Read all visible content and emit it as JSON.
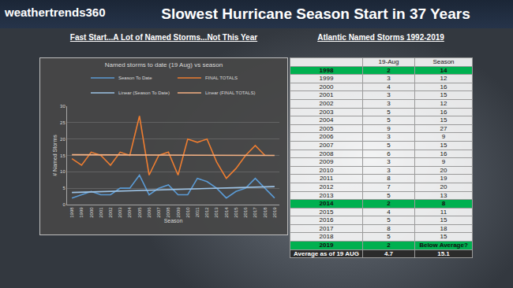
{
  "header": {
    "logo": "weathertrends360",
    "title": "Slowest Hurricane Season Start in 37 Years",
    "left_subtitle": "Fast Start...A Lot of Named Storms...Not This Year",
    "right_subtitle": "Atlantic Named Storms 1992-2019"
  },
  "chart_data": {
    "type": "line",
    "title": "Named storms to date (19 Aug) vs season",
    "x_label": "Season",
    "y_label": "# Named Storms",
    "x": [
      1998,
      1999,
      2000,
      2001,
      2002,
      2003,
      2004,
      2005,
      2006,
      2007,
      2008,
      2009,
      2010,
      2011,
      2012,
      2013,
      2014,
      2015,
      2016,
      2017,
      2018,
      2019
    ],
    "series": [
      {
        "name": "Season To Date",
        "color": "#5B9BD5",
        "line_style": "solid",
        "values": [
          2,
          3,
          4,
          3,
          3,
          5,
          5,
          9,
          3,
          5,
          6,
          3,
          3,
          8,
          7,
          5,
          2,
          4,
          5,
          8,
          5,
          2
        ]
      },
      {
        "name": "FINAL TOTALS",
        "color": "#ED7D31",
        "line_style": "solid",
        "values": [
          14,
          12,
          16,
          15,
          12,
          16,
          15,
          27,
          9,
          15,
          16,
          9,
          20,
          19,
          20,
          13,
          8,
          11,
          15,
          18,
          15,
          null
        ]
      },
      {
        "name": "Linear (Season To Date)",
        "color": "#9DC3E6",
        "line_style": "solid",
        "x": [
          1998,
          2019
        ],
        "values": [
          3.7,
          5.5
        ]
      },
      {
        "name": "Linear (FINAL TOTALS)",
        "color": "#F4B183",
        "line_style": "solid",
        "x": [
          1998,
          2019
        ],
        "values": [
          15.2,
          15.0
        ]
      }
    ],
    "xlim": [
      1997.5,
      2019.5
    ],
    "xticks": [
      1998,
      1999,
      2000,
      2001,
      2002,
      2003,
      2004,
      2005,
      2006,
      2007,
      2008,
      2009,
      2010,
      2011,
      2012,
      2013,
      2014,
      2015,
      2016,
      2017,
      2018,
      2019
    ],
    "ylim": [
      0,
      30
    ],
    "yticks": [
      0,
      5,
      10,
      15,
      20,
      25,
      30
    ],
    "grid": true,
    "legend": "top"
  },
  "table": {
    "columns": [
      "19-Aug",
      "Season"
    ],
    "rows": [
      {
        "cells": [
          "1998",
          2,
          14
        ],
        "color": "#00B050"
      },
      {
        "cells": [
          "1999",
          3,
          12
        ]
      },
      {
        "cells": [
          "2000",
          4,
          16
        ]
      },
      {
        "cells": [
          "2001",
          3,
          15
        ]
      },
      {
        "cells": [
          "2002",
          3,
          12
        ]
      },
      {
        "cells": [
          "2003",
          5,
          16
        ]
      },
      {
        "cells": [
          "2004",
          5,
          15
        ]
      },
      {
        "cells": [
          "2005",
          9,
          27
        ]
      },
      {
        "cells": [
          "2006",
          3,
          9
        ]
      },
      {
        "cells": [
          "2007",
          5,
          15
        ]
      },
      {
        "cells": [
          "2008",
          6,
          16
        ]
      },
      {
        "cells": [
          "2009",
          3,
          9
        ]
      },
      {
        "cells": [
          "2010",
          3,
          20
        ]
      },
      {
        "cells": [
          "2011",
          8,
          19
        ]
      },
      {
        "cells": [
          "2012",
          7,
          20
        ]
      },
      {
        "cells": [
          "2013",
          5,
          13
        ]
      },
      {
        "cells": [
          "2014",
          2,
          8
        ],
        "color": "#00B050"
      },
      {
        "cells": [
          "2015",
          4,
          11
        ]
      },
      {
        "cells": [
          "2016",
          5,
          15
        ]
      },
      {
        "cells": [
          "2017",
          8,
          18
        ]
      },
      {
        "cells": [
          "2018",
          5,
          15
        ]
      },
      {
        "cells": [
          "2019",
          2,
          "Below Average?"
        ],
        "color": "#00B050"
      }
    ],
    "footer": {
      "cells": [
        "Average as of 19 AUG",
        4.7,
        15.1
      ]
    }
  }
}
